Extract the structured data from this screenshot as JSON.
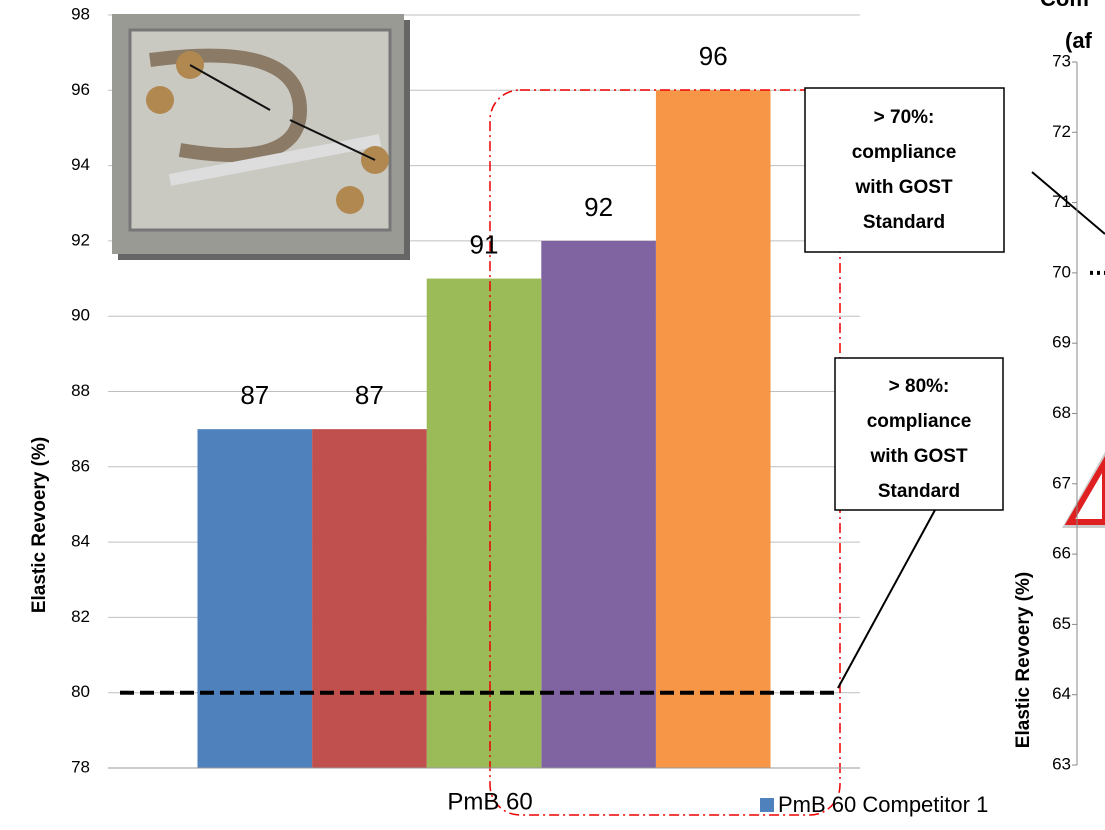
{
  "chart_data": [
    {
      "type": "bar",
      "y_label": "Elastic Revoery (%)",
      "categories": [
        "PmB 60"
      ],
      "series": [
        {
          "color": "#4f81bd",
          "values": [
            87
          ]
        },
        {
          "color": "#c0504d",
          "values": [
            87
          ]
        },
        {
          "color": "#9bbb59",
          "values": [
            91
          ]
        },
        {
          "color": "#8064a2",
          "values": [
            92
          ]
        },
        {
          "color": "#f79646",
          "values": [
            96
          ]
        }
      ],
      "ylim": [
        78,
        98
      ],
      "yticks": [
        78,
        80,
        82,
        84,
        86,
        88,
        90,
        92,
        94,
        96,
        98
      ],
      "grid": true,
      "reference_line": 80,
      "annotations": [
        {
          "lines": [
            "> 70%:",
            "compliance",
            "with GOST",
            "Standard"
          ]
        },
        {
          "lines": [
            "> 80%:",
            "compliance",
            "with GOST",
            "Standard"
          ]
        }
      ]
    },
    {
      "type": "bar",
      "title_lines": [
        "Com",
        "(af"
      ],
      "y_label": "Elastic Revoery (%)",
      "series": [
        {
          "name": "PmB 60 Competitor 1",
          "color": "#4f81bd"
        }
      ],
      "ylim": [
        63,
        73
      ],
      "yticks": [
        63,
        64,
        65,
        66,
        67,
        68,
        69,
        70,
        71,
        72,
        73
      ],
      "reference_line": 70
    }
  ]
}
